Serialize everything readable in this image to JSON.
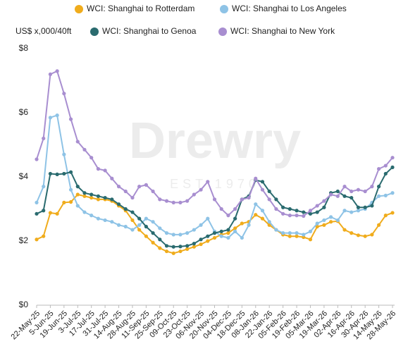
{
  "chart_data": {
    "type": "line",
    "y_label": "US$ x,000/40ft",
    "watermark": "Drewry",
    "watermark_sub": "EST 1970",
    "categories": [
      "22-May-25",
      null,
      "5-Jun-25",
      null,
      "19-Jun-25",
      null,
      "3-Jul-25",
      null,
      "17-Jul-25",
      null,
      "31-Jul-25",
      null,
      "14-Aug-25",
      null,
      "28-Aug-25",
      null,
      "11-Sep-25",
      null,
      "25-Sep-25",
      null,
      "09-Oct-25",
      null,
      "23-Oct-25",
      null,
      "06-Nov-25",
      null,
      "20-Nov-25",
      null,
      "04-Dec-25",
      null,
      "18-Dec-25",
      null,
      "08-Jan-26",
      null,
      "22-Jan-26",
      null,
      "05-Feb-26",
      null,
      "19-Feb-26",
      null,
      "05-Mar-26",
      null,
      "19-Mar-26",
      null,
      "02-Apr-26",
      null,
      "16-Apr-26",
      null,
      "30-Apr-26",
      null,
      "14-May-26",
      null,
      "28-May-26"
    ],
    "series": [
      {
        "name": "WCI: Shanghai to Rotterdam",
        "color": "#f0ac1c",
        "values": [
          2.05,
          2.15,
          2.88,
          2.85,
          3.2,
          3.22,
          3.45,
          3.4,
          3.35,
          3.3,
          3.3,
          3.25,
          3.1,
          2.95,
          2.65,
          2.35,
          2.15,
          1.95,
          1.78,
          1.68,
          1.62,
          1.68,
          1.75,
          1.82,
          1.9,
          2.0,
          2.1,
          2.2,
          2.25,
          2.4,
          2.55,
          2.6,
          2.82,
          2.7,
          2.5,
          2.35,
          2.2,
          2.15,
          2.15,
          2.12,
          2.05,
          2.45,
          2.5,
          2.6,
          2.62,
          2.35,
          2.25,
          2.18,
          2.15,
          2.2,
          2.5,
          2.8,
          2.88
        ]
      },
      {
        "name": "WCI: Shanghai to Los Angeles",
        "color": "#8ec3e6",
        "values": [
          3.2,
          3.7,
          5.85,
          5.92,
          4.7,
          3.6,
          3.1,
          2.9,
          2.8,
          2.7,
          2.65,
          2.6,
          2.5,
          2.45,
          2.35,
          2.5,
          2.7,
          2.6,
          2.4,
          2.25,
          2.2,
          2.2,
          2.25,
          2.35,
          2.5,
          2.7,
          2.3,
          2.15,
          2.1,
          2.3,
          2.1,
          2.5,
          3.15,
          2.95,
          2.6,
          2.35,
          2.25,
          2.25,
          2.25,
          2.2,
          2.3,
          2.55,
          2.65,
          2.75,
          2.65,
          2.95,
          2.9,
          2.95,
          3.0,
          3.2,
          3.4,
          3.42,
          3.5
        ]
      },
      {
        "name": "WCI: Shanghai to Genoa",
        "color": "#2a6b6f",
        "values": [
          2.85,
          2.95,
          4.1,
          4.08,
          4.1,
          4.15,
          3.7,
          3.5,
          3.45,
          3.4,
          3.35,
          3.3,
          3.15,
          3.0,
          2.9,
          2.7,
          2.45,
          2.25,
          2.05,
          1.85,
          1.82,
          1.83,
          1.85,
          1.92,
          2.05,
          2.15,
          2.25,
          2.3,
          2.35,
          2.7,
          3.3,
          3.4,
          3.9,
          3.85,
          3.55,
          3.3,
          3.05,
          3.0,
          2.95,
          2.9,
          2.85,
          2.9,
          3.05,
          3.5,
          3.55,
          3.4,
          3.35,
          3.05,
          3.05,
          3.1,
          3.7,
          4.1,
          4.3
        ]
      },
      {
        "name": "WCI: Shanghai to New York",
        "color": "#a88ed0",
        "values": [
          4.55,
          5.2,
          7.2,
          7.3,
          6.6,
          5.8,
          5.1,
          4.85,
          4.6,
          4.25,
          4.2,
          3.95,
          3.7,
          3.55,
          3.35,
          3.7,
          3.75,
          3.55,
          3.3,
          3.25,
          3.2,
          3.2,
          3.25,
          3.45,
          3.6,
          3.85,
          3.3,
          3.0,
          2.8,
          3.0,
          3.3,
          3.35,
          3.95,
          3.6,
          3.3,
          3.0,
          2.85,
          2.8,
          2.8,
          2.78,
          2.95,
          3.1,
          3.25,
          3.45,
          3.4,
          3.7,
          3.55,
          3.6,
          3.55,
          3.7,
          4.25,
          4.35,
          4.6
        ]
      }
    ],
    "ylim": [
      0,
      8
    ],
    "yticks": [
      {
        "value": 0,
        "label": "$0"
      },
      {
        "value": 2,
        "label": "$2"
      },
      {
        "value": 4,
        "label": "$4"
      },
      {
        "value": 6,
        "label": "$6"
      },
      {
        "value": 8,
        "label": "$8"
      }
    ],
    "grid": false
  }
}
